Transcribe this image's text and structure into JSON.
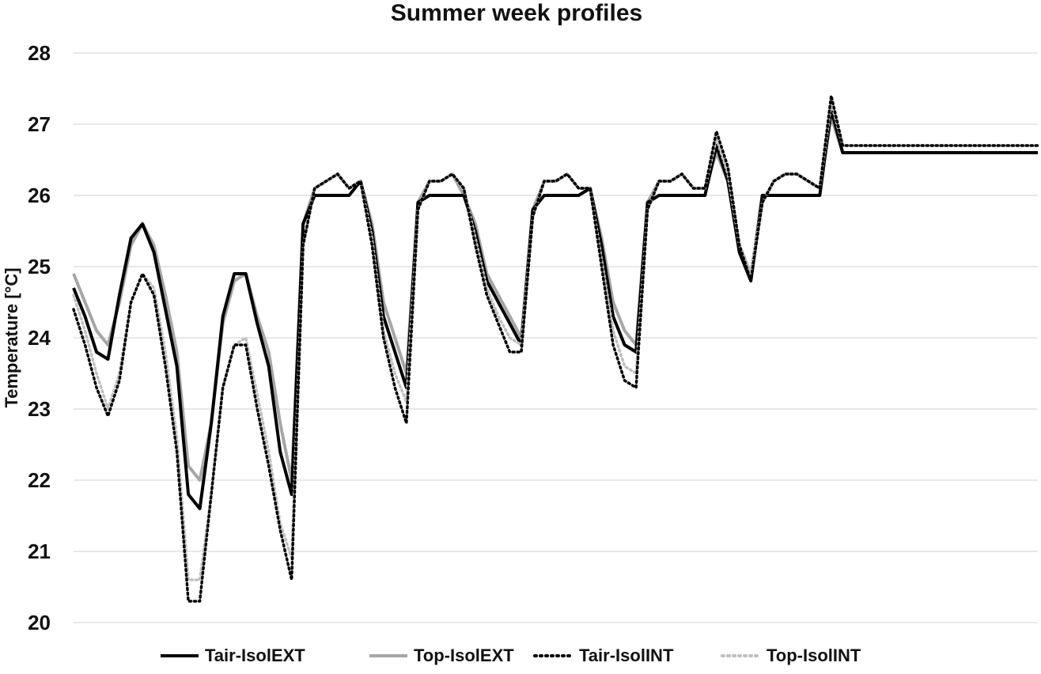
{
  "chart_data": {
    "type": "line",
    "title": "Summer week profiles",
    "xlabel": "",
    "ylabel": "Temperature [°C]",
    "ylim": [
      20,
      28
    ],
    "yticks": [
      "20",
      "21",
      "22",
      "23",
      "24",
      "25",
      "26",
      "27",
      "28"
    ],
    "x": [
      0,
      2,
      4,
      6,
      8,
      10,
      12,
      14,
      16,
      18,
      20,
      22,
      24,
      26,
      28,
      30,
      32,
      34,
      36,
      38,
      40,
      42,
      44,
      46,
      48,
      50,
      52,
      54,
      56,
      58,
      60,
      62,
      64,
      66,
      68,
      70,
      72,
      74,
      76,
      78,
      80,
      82,
      84,
      86,
      88,
      90,
      92,
      94,
      96,
      98,
      100,
      102,
      104,
      106,
      108,
      110,
      112,
      114,
      116,
      118,
      120,
      122,
      124,
      126,
      128,
      130,
      132,
      134,
      136,
      138,
      140,
      142,
      144,
      146,
      148,
      150,
      152,
      154,
      156,
      158,
      160,
      162,
      164,
      166,
      168
    ],
    "grid": true,
    "legend": "bottom",
    "series": [
      {
        "name": "Tair-IsolEXT",
        "color": "#000000",
        "style": "solid",
        "values": [
          24.7,
          24.3,
          23.8,
          23.7,
          24.6,
          25.4,
          25.6,
          25.2,
          24.4,
          23.6,
          21.8,
          21.6,
          22.8,
          24.3,
          24.9,
          24.9,
          24.2,
          23.6,
          22.4,
          21.8,
          25.6,
          26.0,
          26.0,
          26.0,
          26.0,
          26.2,
          25.5,
          24.3,
          23.8,
          23.3,
          25.9,
          26.0,
          26.0,
          26.0,
          26.0,
          25.5,
          24.8,
          24.5,
          24.2,
          23.9,
          25.8,
          26.0,
          26.0,
          26.0,
          26.0,
          26.1,
          25.3,
          24.3,
          23.9,
          23.8,
          25.9,
          26.0,
          26.0,
          26.0,
          26.0,
          26.0,
          26.7,
          26.2,
          25.2,
          24.8,
          26.0,
          26.0,
          26.0,
          26.0,
          26.0,
          26.0,
          27.2,
          26.6,
          26.6,
          26.6,
          26.6,
          26.6,
          26.6,
          26.6,
          26.6,
          26.6,
          26.6,
          26.6,
          26.6,
          26.6,
          26.6,
          26.6,
          26.6,
          26.6,
          26.6
        ]
      },
      {
        "name": "Top-IsolEXT",
        "color": "#a6a6a6",
        "style": "solid",
        "values": [
          24.9,
          24.5,
          24.1,
          23.9,
          24.5,
          25.3,
          25.6,
          25.3,
          24.6,
          23.8,
          22.2,
          22.0,
          22.8,
          24.2,
          24.8,
          24.9,
          24.3,
          23.8,
          22.8,
          22.0,
          25.6,
          26.1,
          26.2,
          26.3,
          26.1,
          26.2,
          25.6,
          24.5,
          24.0,
          23.5,
          25.9,
          26.2,
          26.2,
          26.3,
          26.0,
          25.6,
          24.9,
          24.6,
          24.3,
          24.0,
          25.8,
          26.2,
          26.2,
          26.3,
          26.1,
          26.1,
          25.4,
          24.5,
          24.1,
          23.9,
          25.9,
          26.2,
          26.2,
          26.3,
          26.1,
          26.1,
          26.6,
          26.2,
          25.3,
          24.9,
          25.9,
          26.2,
          26.3,
          26.3,
          26.2,
          26.1,
          27.1,
          26.6,
          26.6,
          26.6,
          26.6,
          26.6,
          26.6,
          26.6,
          26.6,
          26.6,
          26.6,
          26.6,
          26.6,
          26.6,
          26.6,
          26.6,
          26.6,
          26.6,
          26.6
        ]
      },
      {
        "name": "Tair-IsolINT",
        "color": "#000000",
        "style": "dotted",
        "values": [
          24.4,
          23.9,
          23.3,
          22.9,
          23.4,
          24.5,
          24.9,
          24.6,
          23.6,
          22.4,
          20.3,
          20.3,
          21.8,
          23.3,
          23.9,
          23.9,
          23.0,
          22.2,
          21.3,
          20.6,
          25.3,
          26.1,
          26.2,
          26.3,
          26.1,
          26.2,
          25.3,
          24.0,
          23.3,
          22.8,
          25.8,
          26.2,
          26.2,
          26.3,
          26.1,
          25.3,
          24.6,
          24.2,
          23.8,
          23.8,
          25.7,
          26.2,
          26.2,
          26.3,
          26.1,
          26.1,
          25.0,
          23.9,
          23.4,
          23.3,
          25.8,
          26.2,
          26.2,
          26.3,
          26.1,
          26.1,
          26.9,
          26.4,
          25.3,
          24.8,
          25.9,
          26.2,
          26.3,
          26.3,
          26.2,
          26.1,
          27.4,
          26.7,
          26.7,
          26.7,
          26.7,
          26.7,
          26.7,
          26.7,
          26.7,
          26.7,
          26.7,
          26.7,
          26.7,
          26.7,
          26.7,
          26.7,
          26.7,
          26.7,
          26.7
        ]
      },
      {
        "name": "Top-IsolINT",
        "color": "#bfbfbf",
        "style": "dotted",
        "values": [
          24.6,
          24.1,
          23.5,
          23.0,
          23.5,
          24.5,
          24.9,
          24.7,
          23.8,
          22.6,
          20.6,
          20.6,
          21.8,
          23.3,
          23.9,
          24.0,
          23.2,
          22.4,
          21.4,
          20.9,
          25.3,
          26.1,
          26.2,
          26.3,
          26.1,
          26.2,
          25.4,
          24.1,
          23.5,
          23.1,
          25.8,
          26.2,
          26.2,
          26.3,
          26.1,
          25.4,
          24.7,
          24.3,
          24.0,
          23.9,
          25.7,
          26.2,
          26.2,
          26.3,
          26.1,
          26.1,
          25.1,
          24.1,
          23.6,
          23.5,
          25.8,
          26.2,
          26.2,
          26.3,
          26.1,
          26.1,
          26.8,
          26.3,
          25.3,
          24.9,
          25.9,
          26.2,
          26.3,
          26.3,
          26.2,
          26.1,
          27.3,
          26.7,
          26.7,
          26.7,
          26.7,
          26.7,
          26.7,
          26.7,
          26.7,
          26.7,
          26.7,
          26.7,
          26.7,
          26.7,
          26.7,
          26.7,
          26.7,
          26.7,
          26.7
        ]
      }
    ]
  }
}
